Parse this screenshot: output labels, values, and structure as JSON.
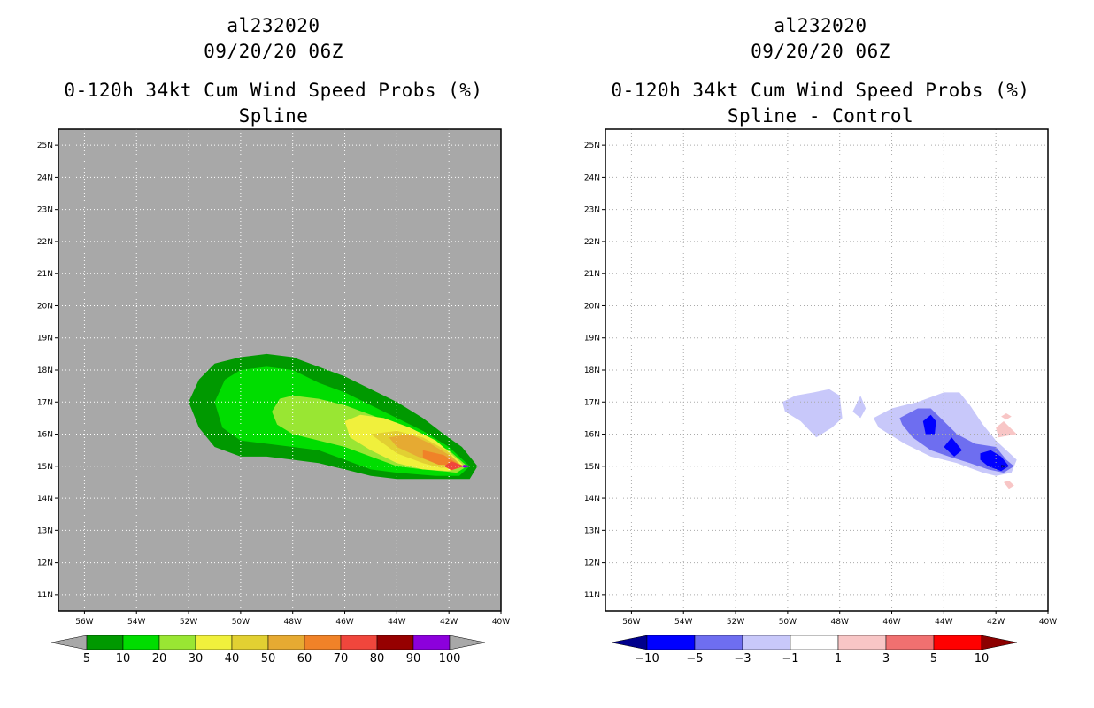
{
  "chart_data": [
    {
      "type": "filled-contour-map",
      "station": "al232020",
      "datetime": "09/20/20 06Z",
      "title": "0-120h 34kt Cum Wind Speed Probs (%)",
      "subtitle": "Spline",
      "x_ticks": [
        "56W",
        "54W",
        "52W",
        "50W",
        "48W",
        "46W",
        "44W",
        "42W",
        "40W"
      ],
      "y_ticks": [
        "25N",
        "24N",
        "23N",
        "22N",
        "21N",
        "20N",
        "19N",
        "18N",
        "17N",
        "16N",
        "15N",
        "14N",
        "13N",
        "12N",
        "11N"
      ],
      "xlim": [
        -57,
        -40
      ],
      "ylim": [
        10.5,
        25.5
      ],
      "background": "#a8a8a8",
      "grid": true,
      "levels": [
        "5",
        "10",
        "20",
        "30",
        "40",
        "50",
        "60",
        "70",
        "80",
        "90",
        "100"
      ],
      "level_colors": [
        "#009900",
        "#00dd00",
        "#99e633",
        "#f0f03c",
        "#e2d032",
        "#e6aa32",
        "#f08228",
        "#f0463c",
        "#960000",
        "#8c00dc"
      ],
      "contours": [
        {
          "level": 5,
          "color": "#009900",
          "points": [
            [
              -52.0,
              17.0
            ],
            [
              -51.6,
              17.7
            ],
            [
              -51.0,
              18.2
            ],
            [
              -50.0,
              18.4
            ],
            [
              -49.0,
              18.5
            ],
            [
              -48.0,
              18.4
            ],
            [
              -47.0,
              18.1
            ],
            [
              -46.0,
              17.8
            ],
            [
              -45.0,
              17.4
            ],
            [
              -44.0,
              17.0
            ],
            [
              -43.0,
              16.5
            ],
            [
              -42.2,
              16.0
            ],
            [
              -41.5,
              15.6
            ],
            [
              -40.9,
              15.0
            ],
            [
              -41.2,
              14.6
            ],
            [
              -42.5,
              14.6
            ],
            [
              -44.0,
              14.6
            ],
            [
              -45.0,
              14.7
            ],
            [
              -46.0,
              14.9
            ],
            [
              -47.0,
              15.1
            ],
            [
              -48.0,
              15.2
            ],
            [
              -49.0,
              15.3
            ],
            [
              -50.0,
              15.3
            ],
            [
              -51.0,
              15.6
            ],
            [
              -51.6,
              16.2
            ]
          ]
        },
        {
          "level": 10,
          "color": "#00dd00",
          "points": [
            [
              -51.0,
              17.0
            ],
            [
              -50.6,
              17.7
            ],
            [
              -50.0,
              18.0
            ],
            [
              -49.0,
              18.1
            ],
            [
              -48.0,
              18.0
            ],
            [
              -47.0,
              17.6
            ],
            [
              -46.0,
              17.3
            ],
            [
              -45.0,
              16.9
            ],
            [
              -44.0,
              16.5
            ],
            [
              -43.0,
              16.1
            ],
            [
              -42.0,
              15.6
            ],
            [
              -41.2,
              15.0
            ],
            [
              -41.6,
              14.7
            ],
            [
              -42.5,
              14.7
            ],
            [
              -44.0,
              14.8
            ],
            [
              -45.0,
              14.9
            ],
            [
              -46.0,
              15.2
            ],
            [
              -47.0,
              15.5
            ],
            [
              -48.0,
              15.6
            ],
            [
              -49.0,
              15.7
            ],
            [
              -50.0,
              15.8
            ],
            [
              -50.7,
              16.2
            ]
          ]
        },
        {
          "level": 20,
          "color": "#99e633",
          "points": [
            [
              -48.8,
              16.7
            ],
            [
              -48.5,
              17.1
            ],
            [
              -48.0,
              17.2
            ],
            [
              -47.0,
              17.1
            ],
            [
              -46.0,
              16.9
            ],
            [
              -45.0,
              16.6
            ],
            [
              -44.0,
              16.3
            ],
            [
              -43.0,
              15.9
            ],
            [
              -42.0,
              15.5
            ],
            [
              -41.3,
              15.0
            ],
            [
              -41.7,
              14.8
            ],
            [
              -43.0,
              14.9
            ],
            [
              -44.0,
              15.0
            ],
            [
              -45.0,
              15.3
            ],
            [
              -46.0,
              15.6
            ],
            [
              -47.0,
              15.8
            ],
            [
              -48.0,
              16.0
            ],
            [
              -48.6,
              16.3
            ]
          ]
        },
        {
          "level": 30,
          "color": "#f0f03c",
          "points": [
            [
              -46.0,
              16.4
            ],
            [
              -45.4,
              16.6
            ],
            [
              -44.5,
              16.5
            ],
            [
              -43.5,
              16.2
            ],
            [
              -42.5,
              15.8
            ],
            [
              -41.8,
              15.3
            ],
            [
              -41.4,
              15.0
            ],
            [
              -42.0,
              14.85
            ],
            [
              -43.0,
              14.9
            ],
            [
              -44.0,
              15.1
            ],
            [
              -45.0,
              15.5
            ],
            [
              -45.8,
              15.9
            ]
          ]
        },
        {
          "level": 40,
          "color": "#e2d032",
          "points": [
            [
              -45.0,
              16.0
            ],
            [
              -44.0,
              16.1
            ],
            [
              -43.0,
              15.9
            ],
            [
              -42.1,
              15.5
            ],
            [
              -41.5,
              15.0
            ],
            [
              -42.3,
              14.95
            ],
            [
              -43.0,
              15.1
            ],
            [
              -44.0,
              15.4
            ]
          ]
        },
        {
          "level": 50,
          "color": "#e6aa32",
          "points": [
            [
              -44.3,
              15.9
            ],
            [
              -43.5,
              16.0
            ],
            [
              -42.7,
              15.7
            ],
            [
              -41.9,
              15.3
            ],
            [
              -41.5,
              15.0
            ],
            [
              -42.4,
              15.05
            ],
            [
              -43.2,
              15.3
            ],
            [
              -44.0,
              15.6
            ]
          ]
        },
        {
          "level": 60,
          "color": "#f08228",
          "points": [
            [
              -43.0,
              15.5
            ],
            [
              -42.2,
              15.35
            ],
            [
              -41.6,
              15.05
            ],
            [
              -42.4,
              15.05
            ],
            [
              -43.0,
              15.25
            ]
          ]
        },
        {
          "level": 70,
          "color": "#f0463c",
          "points": [
            [
              -41.9,
              15.15
            ],
            [
              -41.4,
              15.0
            ],
            [
              -41.9,
              14.88
            ],
            [
              -42.2,
              15.0
            ]
          ]
        },
        {
          "level": 90,
          "color": "#8c00dc",
          "points": [
            [
              -41.4,
              15.05
            ],
            [
              -41.15,
              15.0
            ],
            [
              -41.4,
              14.95
            ],
            [
              -41.55,
              15.0
            ]
          ]
        }
      ],
      "colorbar": {
        "labels": [
          "5",
          "10",
          "20",
          "30",
          "40",
          "50",
          "60",
          "70",
          "80",
          "90",
          "100"
        ],
        "colors": [
          "#009900",
          "#00dd00",
          "#99e633",
          "#f0f03c",
          "#e2d032",
          "#e6aa32",
          "#f08228",
          "#f0463c",
          "#960000",
          "#8c00dc"
        ],
        "left_triangle_color": "#a8a8a8",
        "right_triangle_color": "#a8a8a8"
      }
    },
    {
      "type": "filled-contour-map",
      "station": "al232020",
      "datetime": "09/20/20 06Z",
      "title": "0-120h 34kt Cum Wind Speed Probs (%)",
      "subtitle": "Spline - Control",
      "x_ticks": [
        "56W",
        "54W",
        "52W",
        "50W",
        "48W",
        "46W",
        "44W",
        "42W",
        "40W"
      ],
      "y_ticks": [
        "25N",
        "24N",
        "23N",
        "22N",
        "21N",
        "20N",
        "19N",
        "18N",
        "17N",
        "16N",
        "15N",
        "14N",
        "13N",
        "12N",
        "11N"
      ],
      "xlim": [
        -57,
        -40
      ],
      "ylim": [
        10.5,
        25.5
      ],
      "background": "#ffffff",
      "grid": true,
      "levels": [
        "-10",
        "-5",
        "-3",
        "-1",
        "1",
        "3",
        "5",
        "10"
      ],
      "contours": [
        {
          "level": -1,
          "color": "#c8c8fa",
          "points": [
            [
              -50.2,
              17.0
            ],
            [
              -49.7,
              17.2
            ],
            [
              -49.0,
              17.3
            ],
            [
              -48.4,
              17.4
            ],
            [
              -48.0,
              17.2
            ],
            [
              -47.9,
              16.5
            ],
            [
              -48.3,
              16.2
            ],
            [
              -48.9,
              15.9
            ],
            [
              -49.5,
              16.4
            ],
            [
              -50.1,
              16.7
            ]
          ]
        },
        {
          "level": -1,
          "color": "#c8c8fa",
          "points": [
            [
              -47.5,
              16.7
            ],
            [
              -47.2,
              17.2
            ],
            [
              -47.0,
              16.8
            ],
            [
              -47.2,
              16.5
            ]
          ]
        },
        {
          "level": -1,
          "color": "#c8c8fa",
          "points": [
            [
              -46.7,
              16.5
            ],
            [
              -46.0,
              16.8
            ],
            [
              -45.0,
              17.0
            ],
            [
              -44.0,
              17.3
            ],
            [
              -43.4,
              17.3
            ],
            [
              -43.0,
              16.9
            ],
            [
              -42.5,
              16.3
            ],
            [
              -42.0,
              15.8
            ],
            [
              -41.2,
              15.2
            ],
            [
              -41.4,
              14.8
            ],
            [
              -42.0,
              14.7
            ],
            [
              -42.5,
              14.8
            ],
            [
              -43.5,
              15.1
            ],
            [
              -44.5,
              15.3
            ],
            [
              -45.5,
              15.7
            ],
            [
              -46.5,
              16.2
            ]
          ]
        },
        {
          "level": -3,
          "color": "#6e6ef0",
          "points": [
            [
              -45.7,
              16.5
            ],
            [
              -45.0,
              16.8
            ],
            [
              -44.5,
              16.8
            ],
            [
              -44.0,
              16.4
            ],
            [
              -43.5,
              16.0
            ],
            [
              -42.8,
              15.7
            ],
            [
              -42.0,
              15.6
            ],
            [
              -41.6,
              15.2
            ],
            [
              -41.3,
              15.0
            ],
            [
              -41.7,
              14.8
            ],
            [
              -42.3,
              14.9
            ],
            [
              -43.0,
              15.1
            ],
            [
              -43.8,
              15.3
            ],
            [
              -44.5,
              15.5
            ],
            [
              -45.2,
              15.9
            ],
            [
              -45.6,
              16.3
            ]
          ]
        },
        {
          "level": -5,
          "color": "#0000ff",
          "points": [
            [
              -44.8,
              16.4
            ],
            [
              -44.5,
              16.6
            ],
            [
              -44.3,
              16.4
            ],
            [
              -44.35,
              16.0
            ],
            [
              -44.7,
              16.0
            ]
          ]
        },
        {
          "level": -5,
          "color": "#0000ff",
          "points": [
            [
              -44.0,
              15.6
            ],
            [
              -43.7,
              15.9
            ],
            [
              -43.3,
              15.5
            ],
            [
              -43.6,
              15.3
            ]
          ]
        },
        {
          "level": -5,
          "color": "#0000ff",
          "points": [
            [
              -42.6,
              15.4
            ],
            [
              -42.2,
              15.5
            ],
            [
              -41.8,
              15.3
            ],
            [
              -41.5,
              15.0
            ],
            [
              -41.8,
              14.85
            ],
            [
              -42.3,
              15.0
            ],
            [
              -42.6,
              15.2
            ]
          ]
        },
        {
          "level": -10,
          "color": "#00008c",
          "points": [
            [
              -41.8,
              15.05
            ],
            [
              -41.5,
              15.0
            ],
            [
              -41.8,
              14.95
            ]
          ]
        },
        {
          "level": 1,
          "color": "#f8c6c6",
          "points": [
            [
              -42.0,
              16.2
            ],
            [
              -41.7,
              16.4
            ],
            [
              -41.2,
              16.0
            ],
            [
              -41.9,
              15.9
            ]
          ]
        },
        {
          "level": 1,
          "color": "#f8c6c6",
          "points": [
            [
              -41.8,
              16.55
            ],
            [
              -41.6,
              16.65
            ],
            [
              -41.4,
              16.55
            ],
            [
              -41.6,
              16.45
            ]
          ]
        },
        {
          "level": 1,
          "color": "#f8c6c6",
          "points": [
            [
              -41.7,
              14.5
            ],
            [
              -41.5,
              14.55
            ],
            [
              -41.3,
              14.4
            ],
            [
              -41.5,
              14.3
            ]
          ]
        }
      ],
      "colorbar": {
        "labels": [
          "-10",
          "-5",
          "-3",
          "-1",
          "1",
          "3",
          "5",
          "10"
        ],
        "colors": [
          "#0000ff",
          "#6e6ef0",
          "#c8c8fa",
          "#ffffff",
          "#f8c6c6",
          "#f07070",
          "#ff0000"
        ],
        "left_triangle_color": "#00008c",
        "right_triangle_color": "#8c0000"
      }
    }
  ]
}
